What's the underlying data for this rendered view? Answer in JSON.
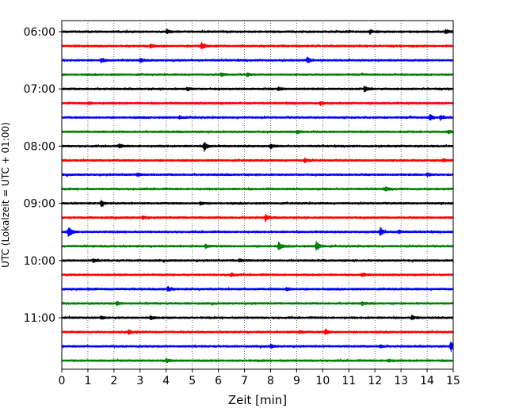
{
  "chart_data": {
    "type": "line",
    "title": "",
    "xlabel": "Zeit  [min]",
    "ylabel": "UTC (Lokalzeit = UTC + 01:00)",
    "xlim": [
      0,
      15
    ],
    "x_ticks": [
      "0",
      "1",
      "2",
      "3",
      "4",
      "5",
      "6",
      "7",
      "8",
      "9",
      "10",
      "11",
      "12",
      "13",
      "14",
      "15"
    ],
    "y_ticks": [
      "06:00",
      "07:00",
      "08:00",
      "09:00",
      "10:00",
      "11:00"
    ],
    "grid": "vertical dotted at each minute",
    "line_interval_minutes": 15,
    "color_cycle": [
      "#000000",
      "#ff0000",
      "#0000ff",
      "#008000"
    ],
    "traces": [
      {
        "start": "06:00",
        "color": "#000000",
        "events": [
          [
            4.0,
            0.35
          ],
          [
            14.7,
            0.45
          ],
          [
            11.8,
            0.25
          ]
        ]
      },
      {
        "start": "06:15",
        "color": "#ff0000",
        "events": [
          [
            3.4,
            0.4
          ],
          [
            5.35,
            0.65
          ]
        ]
      },
      {
        "start": "06:30",
        "color": "#0000ff",
        "events": [
          [
            1.5,
            0.35
          ],
          [
            3.0,
            0.35
          ],
          [
            9.4,
            0.55
          ]
        ]
      },
      {
        "start": "06:45",
        "color": "#008000",
        "events": [
          [
            6.1,
            0.3
          ],
          [
            7.1,
            0.3
          ]
        ]
      },
      {
        "start": "07:00",
        "color": "#000000",
        "events": [
          [
            4.8,
            0.3
          ],
          [
            11.6,
            0.45
          ],
          [
            8.3,
            0.3
          ]
        ]
      },
      {
        "start": "07:15",
        "color": "#ff0000",
        "events": [
          [
            9.9,
            0.35
          ],
          [
            1.0,
            0.25
          ]
        ]
      },
      {
        "start": "07:30",
        "color": "#0000ff",
        "events": [
          [
            14.1,
            0.6
          ],
          [
            14.5,
            0.4
          ],
          [
            4.5,
            0.25
          ]
        ]
      },
      {
        "start": "07:45",
        "color": "#008000",
        "events": [
          [
            9.0,
            0.3
          ],
          [
            14.8,
            0.35
          ]
        ]
      },
      {
        "start": "08:00",
        "color": "#000000",
        "events": [
          [
            5.45,
            0.85
          ],
          [
            2.2,
            0.35
          ],
          [
            8.0,
            0.35
          ]
        ]
      },
      {
        "start": "08:15",
        "color": "#ff0000",
        "events": [
          [
            9.3,
            0.4
          ],
          [
            14.6,
            0.25
          ]
        ]
      },
      {
        "start": "08:30",
        "color": "#0000ff",
        "events": [
          [
            2.9,
            0.3
          ],
          [
            14.0,
            0.3
          ]
        ]
      },
      {
        "start": "08:45",
        "color": "#008000",
        "events": [
          [
            12.4,
            0.3
          ]
        ]
      },
      {
        "start": "09:00",
        "color": "#000000",
        "events": [
          [
            1.5,
            0.55
          ],
          [
            5.3,
            0.3
          ]
        ]
      },
      {
        "start": "09:15",
        "color": "#ff0000",
        "events": [
          [
            7.8,
            0.55
          ],
          [
            3.1,
            0.3
          ]
        ]
      },
      {
        "start": "09:30",
        "color": "#0000ff",
        "events": [
          [
            0.25,
            1.05
          ],
          [
            12.2,
            0.85
          ],
          [
            12.9,
            0.3
          ]
        ]
      },
      {
        "start": "09:45",
        "color": "#008000",
        "events": [
          [
            8.3,
            0.7
          ],
          [
            9.75,
            0.95
          ],
          [
            5.5,
            0.3
          ]
        ]
      },
      {
        "start": "10:00",
        "color": "#000000",
        "events": [
          [
            1.2,
            0.3
          ],
          [
            6.8,
            0.25
          ]
        ]
      },
      {
        "start": "10:15",
        "color": "#ff0000",
        "events": [
          [
            6.5,
            0.35
          ],
          [
            11.5,
            0.3
          ]
        ]
      },
      {
        "start": "10:30",
        "color": "#0000ff",
        "events": [
          [
            4.05,
            0.45
          ],
          [
            8.6,
            0.3
          ]
        ]
      },
      {
        "start": "10:45",
        "color": "#008000",
        "events": [
          [
            2.1,
            0.3
          ],
          [
            11.5,
            0.25
          ]
        ]
      },
      {
        "start": "11:00",
        "color": "#000000",
        "events": [
          [
            3.4,
            0.3
          ],
          [
            13.4,
            0.35
          ],
          [
            1.5,
            0.25
          ]
        ]
      },
      {
        "start": "11:15",
        "color": "#ff0000",
        "events": [
          [
            2.55,
            0.35
          ],
          [
            10.1,
            0.45
          ],
          [
            9.1,
            0.25
          ]
        ]
      },
      {
        "start": "11:30",
        "color": "#0000ff",
        "events": [
          [
            14.9,
            1.0
          ],
          [
            8.0,
            0.3
          ],
          [
            12.2,
            0.3
          ]
        ]
      },
      {
        "start": "11:45",
        "color": "#008000",
        "events": [
          [
            4.0,
            0.3
          ],
          [
            12.5,
            0.25
          ]
        ]
      }
    ]
  }
}
